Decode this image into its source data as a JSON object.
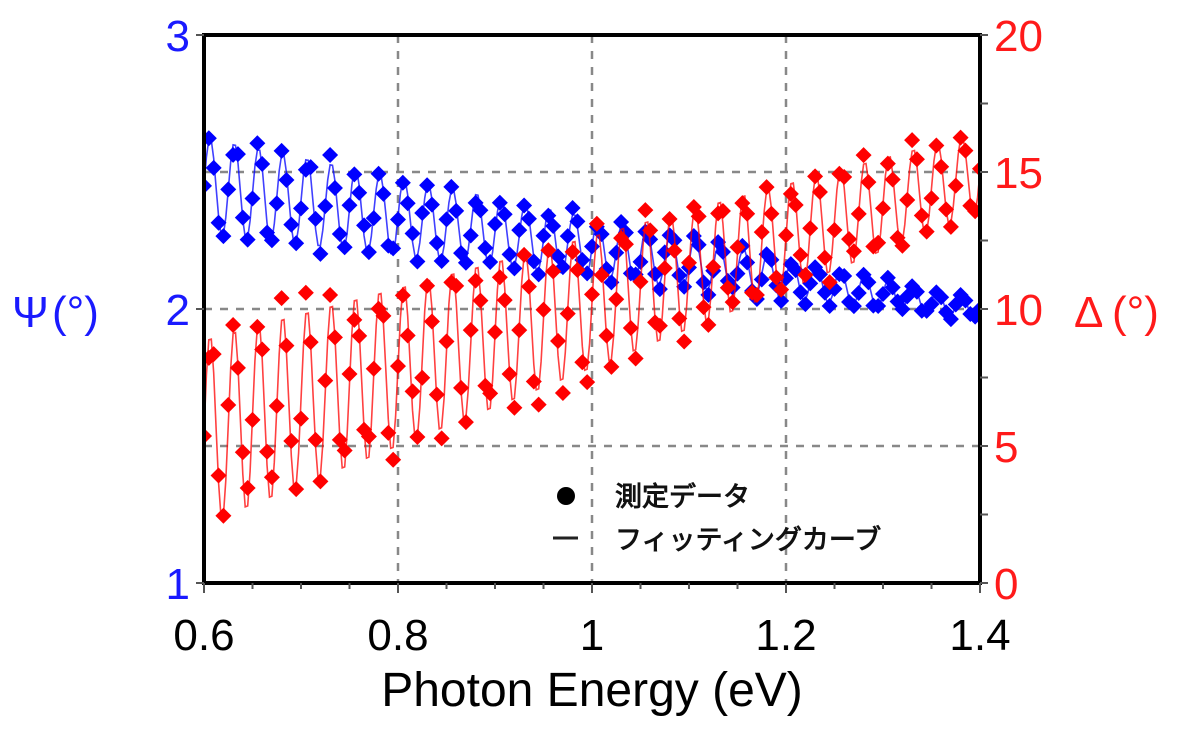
{
  "chart_data": {
    "type": "scatter",
    "title": "",
    "xlabel": "Photon Energy (eV)",
    "xlim": [
      0.6,
      1.4
    ],
    "x_ticks": [
      "0.6",
      "0.8",
      "1",
      "1.2",
      "1.4"
    ],
    "x_tick_values": [
      0.6,
      0.8,
      1.0,
      1.2,
      1.4
    ],
    "y_left": {
      "label_symbol": "Ψ",
      "label_unit": "(°)",
      "ylim": [
        1,
        3
      ],
      "ticks": [
        "1",
        "2",
        "3"
      ],
      "tick_values": [
        1,
        2,
        3
      ],
      "color": "#1a1aff"
    },
    "y_right": {
      "label_symbol": "Δ",
      "label_unit": "(°)",
      "ylim": [
        0,
        20
      ],
      "ticks": [
        "0",
        "5",
        "10",
        "15",
        "20"
      ],
      "tick_values": [
        0,
        5,
        10,
        15,
        20
      ],
      "color": "#ff1a1a"
    },
    "grid": true,
    "legend": {
      "position": "bottom-right",
      "entries": [
        {
          "marker": "dot",
          "label": "測定データ"
        },
        {
          "marker": "line",
          "label": "フィッティングカーブ"
        }
      ]
    },
    "series": [
      {
        "name": "Ψ",
        "axis": "left",
        "color": "#0000ff",
        "trend_start": 2.45,
        "trend_end": 2.0,
        "oscillation_amp_start": 0.18,
        "oscillation_amp_end": 0.04,
        "oscillation_period_eV": 0.025
      },
      {
        "name": "Δ",
        "axis": "right",
        "color": "#ff0000",
        "trend_start": 5.5,
        "trend_end": 15.0,
        "oscillation_amp_start": 3.5,
        "oscillation_amp_end": 1.5,
        "oscillation_period_eV": 0.025
      }
    ]
  }
}
